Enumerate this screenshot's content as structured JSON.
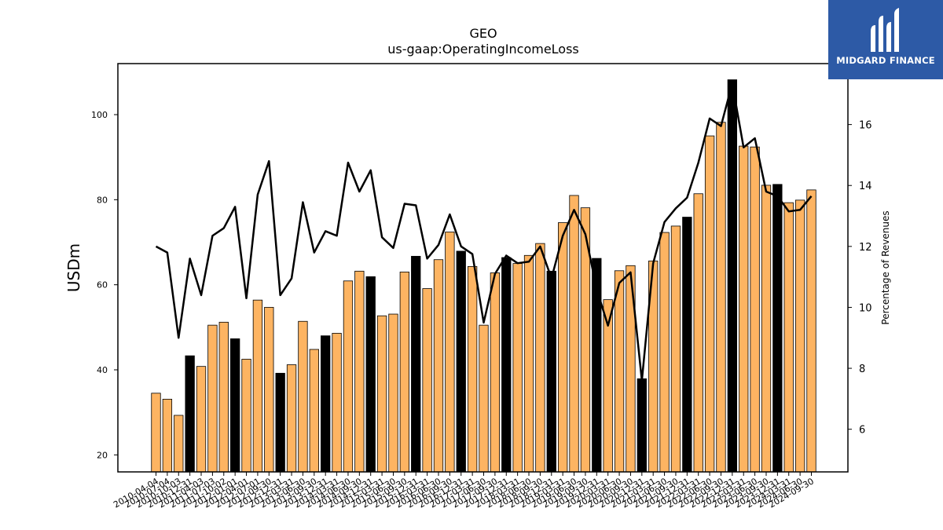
{
  "chart_data": {
    "type": "bar",
    "title": "GEO",
    "subtitle": "us-gaap:OperatingIncomeLoss",
    "ylabel": "USDm",
    "y2label": "Percentage of Revenues",
    "ylim": [
      16,
      112
    ],
    "y2lim": [
      4.6,
      18.0
    ],
    "yticks": [
      20,
      40,
      60,
      80,
      100
    ],
    "y2ticks": [
      6,
      8,
      10,
      12,
      14,
      16
    ],
    "grid": false,
    "legend": "none",
    "colors": {
      "quarter_bar": "#FDB462",
      "annual_bar": "#000000",
      "line": "#000000"
    },
    "categories": [
      "2010-04-04",
      "2010-07-04",
      "2010-10-03",
      "2010-12-31",
      "2011-04-03",
      "2011-07-03",
      "2011-10-02",
      "2012-01-01",
      "2012-04-01",
      "2012-07-01",
      "2012-09-30",
      "2012-12-31",
      "2013-03-31",
      "2013-06-30",
      "2013-09-30",
      "2013-12-31",
      "2014-03-31",
      "2014-06-30",
      "2014-09-30",
      "2014-12-31",
      "2015-03-31",
      "2015-06-30",
      "2015-09-30",
      "2015-12-31",
      "2016-03-31",
      "2016-06-30",
      "2016-09-30",
      "2016-12-31",
      "2017-03-31",
      "2017-06-30",
      "2017-09-30",
      "2017-12-31",
      "2018-03-31",
      "2018-06-30",
      "2018-09-30",
      "2018-12-31",
      "2019-03-31",
      "2019-06-30",
      "2019-09-30",
      "2019-12-31",
      "2020-03-31",
      "2020-06-30",
      "2020-09-30",
      "2020-12-31",
      "2021-03-31",
      "2021-06-30",
      "2021-09-30",
      "2021-12-31",
      "2022-03-31",
      "2022-06-30",
      "2022-09-30",
      "2022-12-31",
      "2023-03-31",
      "2023-06-30",
      "2023-09-30",
      "2023-12-31",
      "2024-03-31",
      "2024-06-30",
      "2024-09-30"
    ],
    "series": [
      {
        "values": [
          34.5,
          33.1,
          29.3,
          43.3,
          40.8,
          50.5,
          51.2,
          47.3,
          42.5,
          56.4,
          54.7,
          39.2,
          41.2,
          51.4,
          44.8,
          48.0,
          48.6,
          60.9,
          63.2,
          61.9,
          52.7,
          53.1,
          63.0,
          66.7,
          59.1,
          65.9,
          72.4,
          67.9,
          64.3,
          50.5,
          62.8,
          66.4,
          65.0,
          66.9,
          69.7,
          63.2,
          74.6,
          81.0,
          78.1,
          66.2,
          56.5,
          63.3,
          64.5,
          37.9,
          65.6,
          72.3,
          73.8,
          75.9,
          81.4,
          95.0,
          98.2,
          108.2,
          92.6,
          92.4,
          83.4,
          83.6,
          79.3,
          79.9,
          82.3
        ],
        "annual_flags": [
          0,
          0,
          0,
          1,
          0,
          0,
          0,
          1,
          0,
          0,
          0,
          1,
          0,
          0,
          0,
          1,
          0,
          0,
          0,
          1,
          0,
          0,
          0,
          1,
          0,
          0,
          0,
          1,
          0,
          0,
          0,
          1,
          0,
          0,
          0,
          1,
          0,
          0,
          0,
          1,
          0,
          0,
          0,
          1,
          0,
          0,
          0,
          1,
          0,
          0,
          0,
          1,
          0,
          0,
          0,
          1,
          0,
          0,
          0
        ]
      },
      {
        "axis": "right",
        "values": [
          12.0,
          11.8,
          9.0,
          11.6,
          10.4,
          12.35,
          12.6,
          13.3,
          10.3,
          13.7,
          14.8,
          10.4,
          10.95,
          13.45,
          11.8,
          12.5,
          12.35,
          14.75,
          13.8,
          14.5,
          12.3,
          11.95,
          13.4,
          13.35,
          11.6,
          12.05,
          13.05,
          12.0,
          11.75,
          9.5,
          11.1,
          11.7,
          11.45,
          11.5,
          12.0,
          10.95,
          12.35,
          13.2,
          12.4,
          10.6,
          9.4,
          10.8,
          11.15,
          7.6,
          11.45,
          12.8,
          13.25,
          13.6,
          14.75,
          16.2,
          15.95,
          17.35,
          15.25,
          15.55,
          13.8,
          13.65,
          13.15,
          13.2,
          13.65
        ]
      }
    ]
  },
  "logo": {
    "text": "MIDGARD FINANCE"
  }
}
